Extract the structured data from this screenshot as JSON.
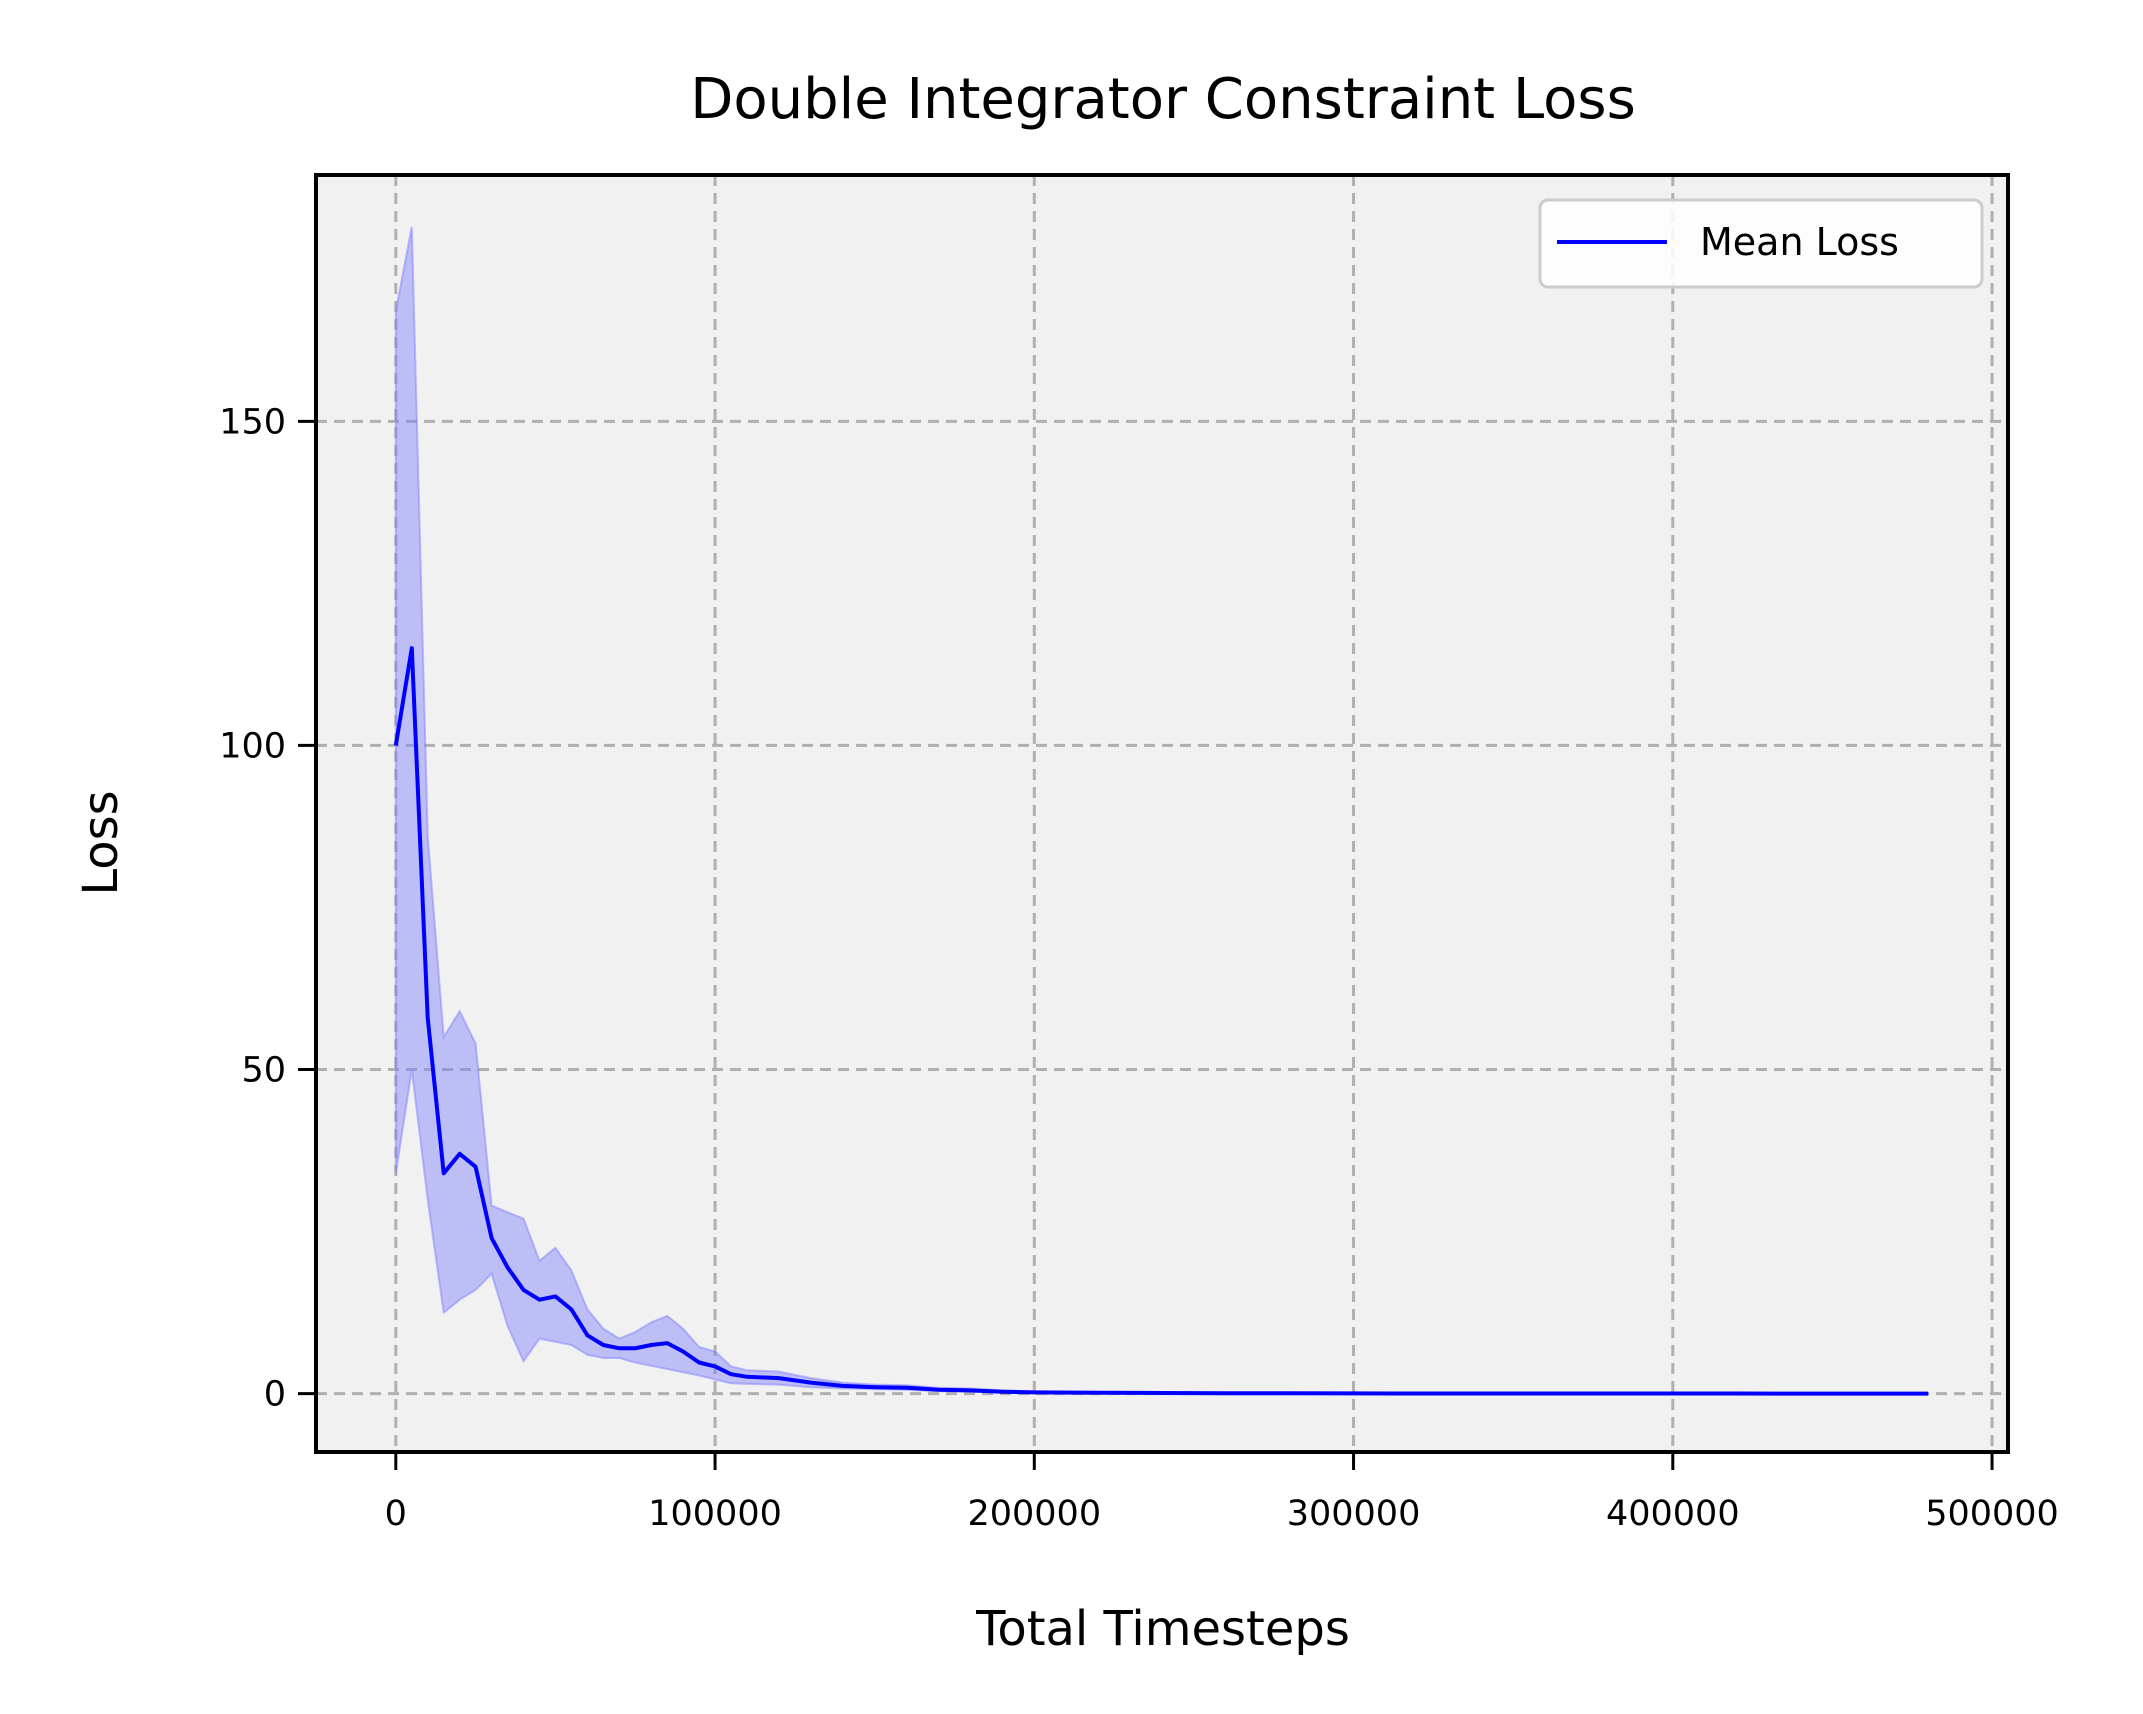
{
  "chart_data": {
    "type": "line",
    "title": "Double Integrator Constraint Loss",
    "xlabel": "Total Timesteps",
    "ylabel": "Loss",
    "xlim": [
      -25000,
      505000
    ],
    "ylim": [
      -9,
      188
    ],
    "x_ticks": [
      0,
      100000,
      200000,
      300000,
      400000,
      500000
    ],
    "x_tick_labels": [
      "0",
      "100000",
      "200000",
      "300000",
      "400000",
      "500000"
    ],
    "y_ticks": [
      0,
      50,
      100,
      150
    ],
    "y_tick_labels": [
      "0",
      "50",
      "100",
      "150"
    ],
    "grid": true,
    "legend": {
      "position": "top-right",
      "entries": [
        "Mean Loss"
      ]
    },
    "colors": {
      "line": "#0000ff",
      "band": "#8080ff",
      "plot_bg": "#f1f1f1",
      "grid": "#b0b0b0"
    },
    "series": [
      {
        "name": "Mean Loss",
        "x": [
          0,
          5000,
          10000,
          15000,
          20000,
          25000,
          30000,
          35000,
          40000,
          45000,
          50000,
          55000,
          60000,
          65000,
          70000,
          75000,
          80000,
          85000,
          90000,
          95000,
          100000,
          105000,
          110000,
          120000,
          130000,
          140000,
          150000,
          160000,
          170000,
          180000,
          190000,
          200000,
          220000,
          240000,
          260000,
          280000,
          300000,
          320000,
          340000,
          360000,
          380000,
          400000,
          420000,
          440000,
          460000,
          480000
        ],
        "y": [
          100,
          115,
          58,
          34,
          37,
          35,
          24,
          19.5,
          16,
          14.5,
          15,
          13,
          9,
          7.5,
          7,
          7,
          7.5,
          7.8,
          6.5,
          4.8,
          4.2,
          3.0,
          2.6,
          2.4,
          1.7,
          1.2,
          1.0,
          0.9,
          0.6,
          0.5,
          0.3,
          0.2,
          0.15,
          0.1,
          0.06,
          0.05,
          0.04,
          0.03,
          0.03,
          0.02,
          0.02,
          0.02,
          0.02,
          0.01,
          0.01,
          0.01
        ],
        "lower": [
          34,
          50,
          30,
          12.5,
          14.5,
          16,
          18.5,
          10.5,
          5,
          8.5,
          8,
          7.5,
          6,
          5.5,
          5.5,
          4.8,
          4.3,
          3.8,
          3.3,
          2.8,
          2.2,
          1.6,
          1.5,
          1.4,
          1.0,
          0.8,
          0.7,
          0.6,
          0.4,
          0.3,
          0.2,
          0.1,
          0.08,
          0.05,
          0.03,
          0.02,
          0.02,
          0.01,
          0.01,
          0.01,
          0.01,
          0.01,
          0.01,
          0.0,
          0.0,
          0.0
        ],
        "upper": [
          167,
          180,
          86,
          55,
          59,
          54,
          29,
          28,
          27,
          20.5,
          22.5,
          19,
          13,
          10,
          8.5,
          9.5,
          11,
          12,
          10,
          7.2,
          6.5,
          4.2,
          3.6,
          3.4,
          2.4,
          1.7,
          1.4,
          1.3,
          0.9,
          0.8,
          0.5,
          0.35,
          0.25,
          0.17,
          0.1,
          0.08,
          0.07,
          0.05,
          0.05,
          0.04,
          0.04,
          0.04,
          0.03,
          0.03,
          0.02,
          0.02
        ]
      }
    ]
  }
}
